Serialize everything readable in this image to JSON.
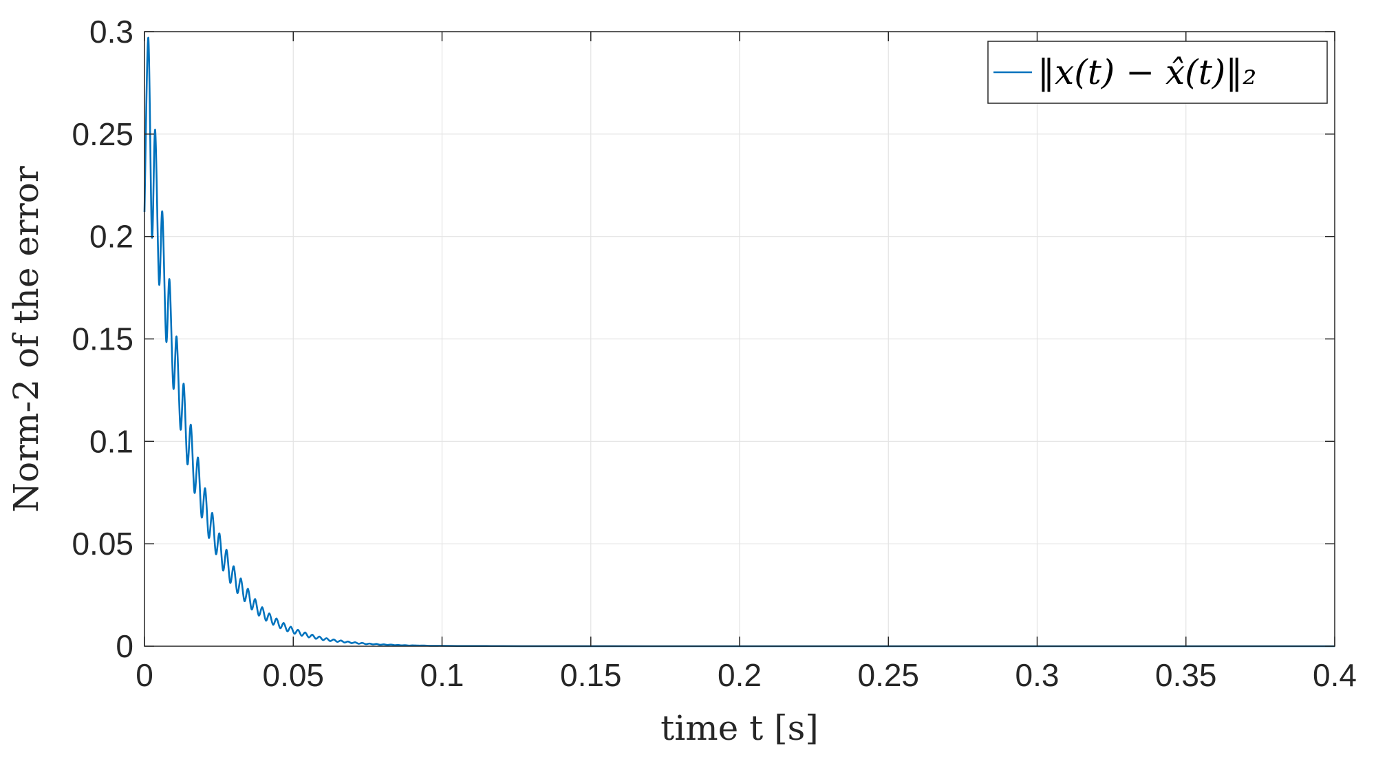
{
  "chart_data": {
    "type": "line",
    "xlabel": "time t [s]",
    "ylabel": "Norm-2 of the error",
    "xlim": [
      0,
      0.4
    ],
    "ylim": [
      0,
      0.3
    ],
    "x_ticks": [
      0,
      0.05,
      0.1,
      0.15,
      0.2,
      0.25,
      0.3,
      0.35,
      0.4
    ],
    "x_tick_labels": [
      "0",
      "0.05",
      "0.1",
      "0.15",
      "0.2",
      "0.25",
      "0.3",
      "0.35",
      "0.4"
    ],
    "y_ticks": [
      0,
      0.05,
      0.1,
      0.15,
      0.2,
      0.25,
      0.3
    ],
    "y_tick_labels": [
      "0",
      "0.05",
      "0.1",
      "0.15",
      "0.2",
      "0.25",
      "0.3"
    ],
    "grid": true,
    "legend_position": "top-right",
    "series": [
      {
        "name": "‖x(t) − x̂(t)‖₂",
        "color": "#0072BD",
        "x": [
          0.0,
          0.0013,
          0.0025,
          0.0036,
          0.0049,
          0.006,
          0.0073,
          0.0084,
          0.0097,
          0.0108,
          0.0121,
          0.0132,
          0.0144,
          0.0156,
          0.0168,
          0.018,
          0.0192,
          0.0204,
          0.0216,
          0.0228,
          0.024,
          0.0252,
          0.0264,
          0.0276,
          0.0288,
          0.03,
          0.0312,
          0.0324,
          0.0336,
          0.0348,
          0.036,
          0.0372,
          0.0384,
          0.0396,
          0.0408,
          0.042,
          0.0432,
          0.0444,
          0.0456,
          0.0468,
          0.048,
          0.0492,
          0.0504,
          0.0516,
          0.0528,
          0.054,
          0.0552,
          0.0564,
          0.0576,
          0.0588,
          0.06,
          0.0612,
          0.0624,
          0.0636,
          0.0648,
          0.066,
          0.0672,
          0.0684,
          0.0696,
          0.0708,
          0.072,
          0.0732,
          0.0744,
          0.0756,
          0.0768,
          0.078,
          0.0792,
          0.0804,
          0.0816,
          0.0828,
          0.084,
          0.0852,
          0.0864,
          0.0876,
          0.0888,
          0.09,
          0.092,
          0.094,
          0.096,
          0.098,
          0.1,
          0.105,
          0.11,
          0.115,
          0.12,
          0.13,
          0.14,
          0.15,
          0.17,
          0.2,
          0.25,
          0.3,
          0.35,
          0.4
        ],
        "y": [
          0.212,
          0.297,
          0.2,
          0.252,
          0.177,
          0.212,
          0.149,
          0.179,
          0.126,
          0.151,
          0.106,
          0.128,
          0.089,
          0.108,
          0.075,
          0.092,
          0.063,
          0.077,
          0.053,
          0.065,
          0.045,
          0.055,
          0.037,
          0.047,
          0.031,
          0.039,
          0.026,
          0.033,
          0.022,
          0.028,
          0.018,
          0.023,
          0.015,
          0.019,
          0.0125,
          0.016,
          0.0105,
          0.0135,
          0.0088,
          0.0113,
          0.0073,
          0.0095,
          0.0061,
          0.008,
          0.0051,
          0.0067,
          0.0043,
          0.0056,
          0.0036,
          0.0047,
          0.003,
          0.0039,
          0.0025,
          0.0033,
          0.0021,
          0.0028,
          0.0018,
          0.0023,
          0.0015,
          0.0019,
          0.0012,
          0.0016,
          0.001,
          0.0013,
          0.0009,
          0.0011,
          0.0007,
          0.0009,
          0.0006,
          0.0008,
          0.0005,
          0.0006,
          0.0004,
          0.0005,
          0.0003,
          0.0004,
          0.0003,
          0.0003,
          0.0002,
          0.0002,
          0.0002,
          0.0001,
          0.0001,
          0.0001,
          5e-05,
          3e-05,
          2e-05,
          1e-05,
          0.0,
          0.0,
          0.0,
          0.0,
          0.0,
          0.0
        ]
      }
    ]
  }
}
